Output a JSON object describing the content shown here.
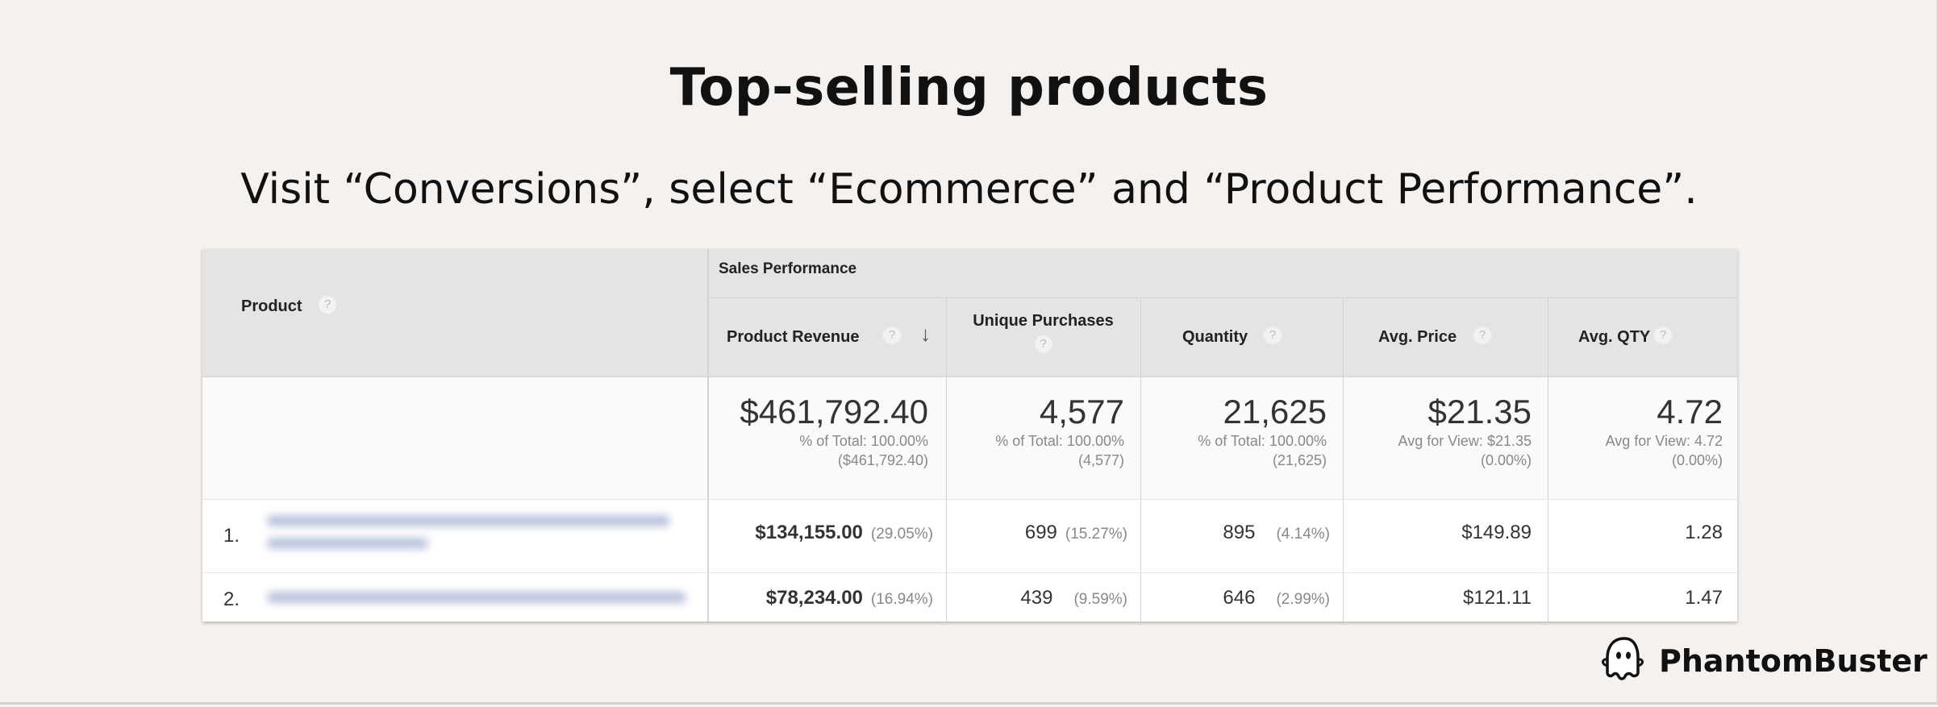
{
  "title": "Top-selling products",
  "subtitle": "Visit “Conversions”, select “Ecommerce” and “Product Performance”.",
  "table": {
    "group_header": "Sales Performance",
    "product_header": "Product",
    "help_glyph": "?",
    "sort_glyph": "↓",
    "columns": [
      {
        "label": "Product Revenue"
      },
      {
        "label": "Unique Purchases"
      },
      {
        "label": "Quantity"
      },
      {
        "label": "Avg. Price"
      },
      {
        "label": "Avg. QTY"
      }
    ],
    "totals": [
      {
        "value": "$461,792.40",
        "sub1": "% of Total: 100.00%",
        "sub2": "($461,792.40)"
      },
      {
        "value": "4,577",
        "sub1": "% of Total: 100.00%",
        "sub2": "(4,577)"
      },
      {
        "value": "21,625",
        "sub1": "% of Total: 100.00%",
        "sub2": "(21,625)"
      },
      {
        "value": "$21.35",
        "sub1": "Avg for View: $21.35",
        "sub2": "(0.00%)"
      },
      {
        "value": "4.72",
        "sub1": "Avg for View: 4.72",
        "sub2": "(0.00%)"
      }
    ],
    "rows": [
      {
        "index": "1.",
        "revenue": "$134,155.00",
        "revenue_pct": "(29.05%)",
        "unique": "699",
        "unique_pct": "(15.27%)",
        "quantity": "895",
        "quantity_pct": "(4.14%)",
        "avg_price": "$149.89",
        "avg_qty": "1.28"
      },
      {
        "index": "2.",
        "revenue": "$78,234.00",
        "revenue_pct": "(16.94%)",
        "unique": "439",
        "unique_pct": "(9.59%)",
        "quantity": "646",
        "quantity_pct": "(2.99%)",
        "avg_price": "$121.11",
        "avg_qty": "1.47"
      }
    ]
  },
  "brand": {
    "name": "PhantomBuster",
    "icon": "ghost-icon"
  }
}
